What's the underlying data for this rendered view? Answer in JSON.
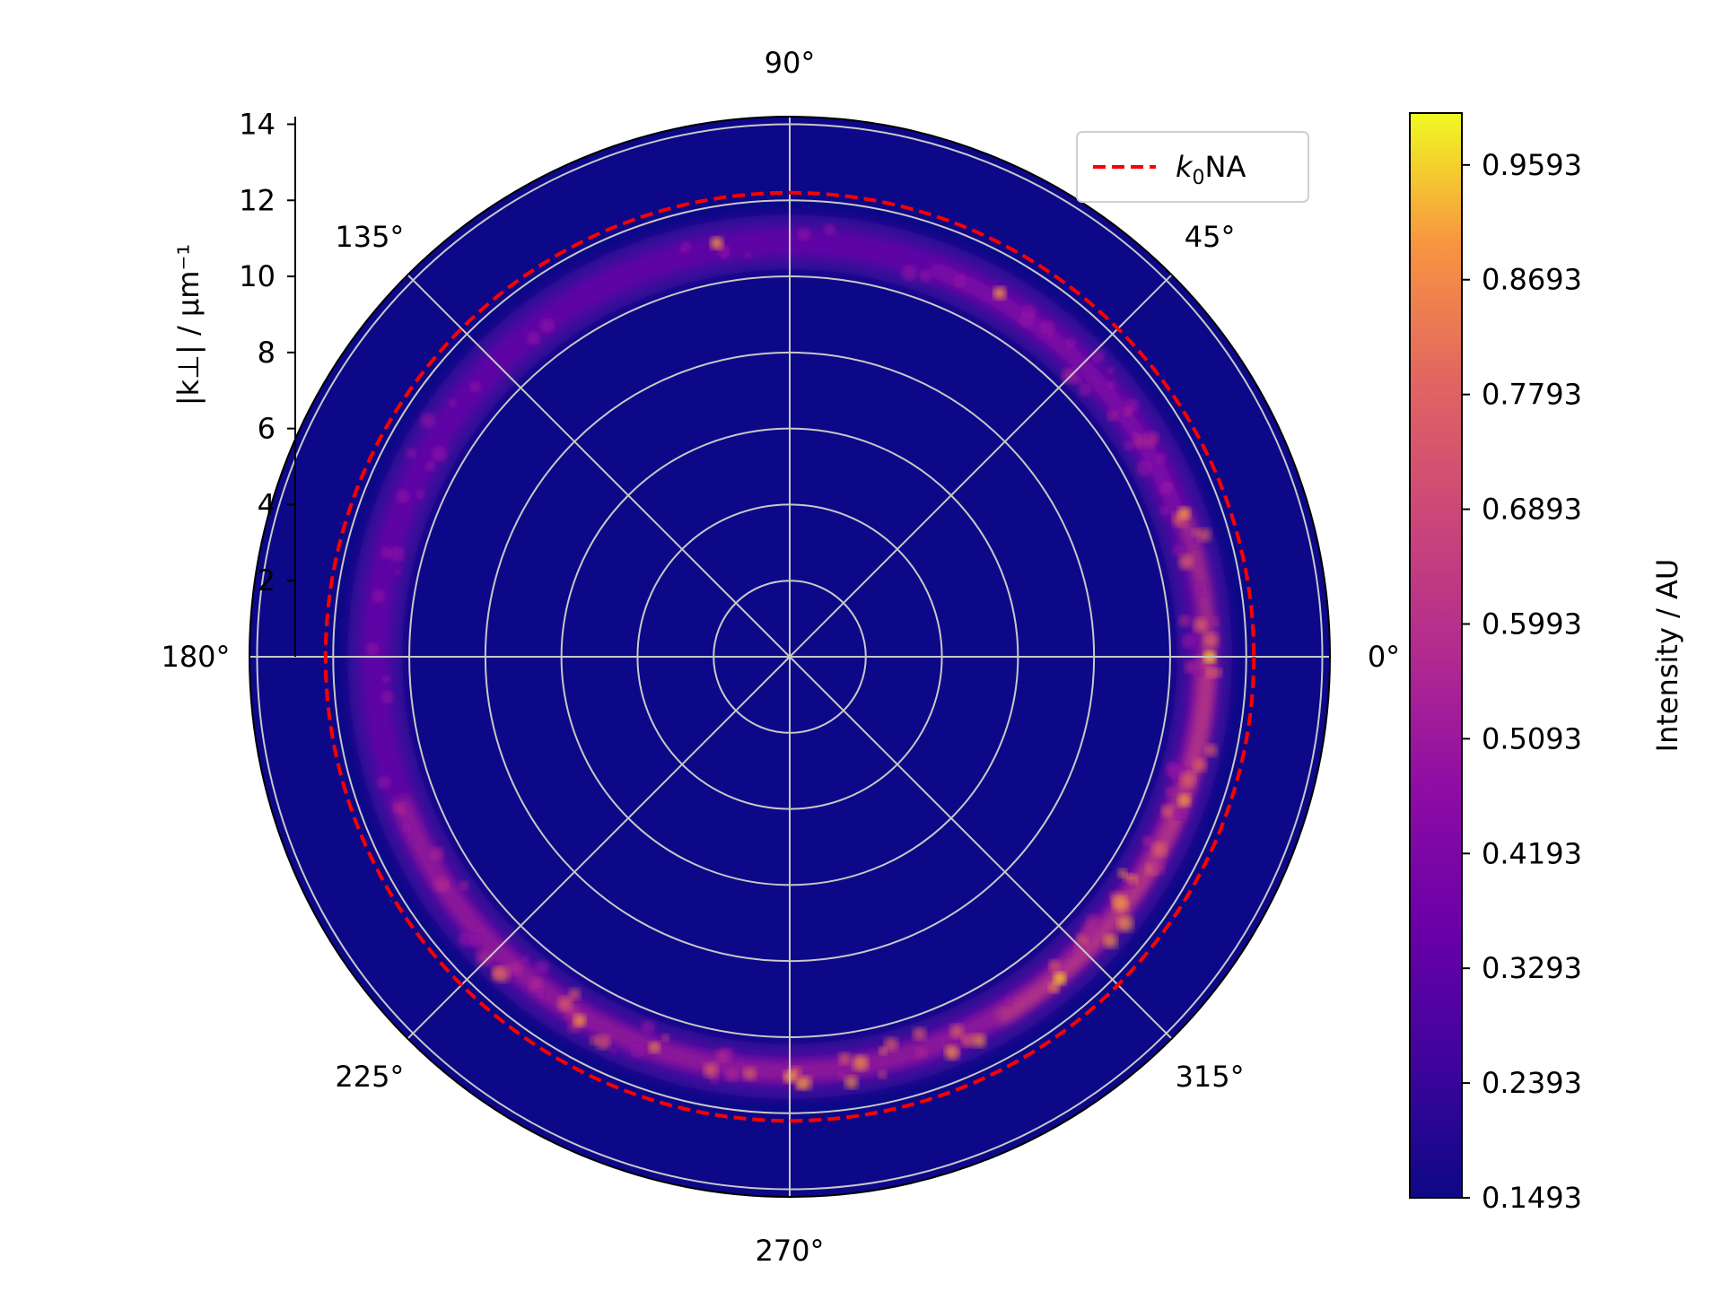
{
  "chart_data": {
    "type": "heatmap",
    "projection": "polar",
    "title": "",
    "radial_axis": {
      "label": "|k⊥| / μm⁻¹",
      "ticks": [
        2,
        4,
        6,
        8,
        10,
        12,
        14
      ],
      "tick_labels": [
        "2",
        "4",
        "6",
        "8",
        "10",
        "12",
        "14"
      ],
      "range": [
        0,
        14.2
      ]
    },
    "angular_axis": {
      "ticks_deg": [
        0,
        45,
        90,
        135,
        180,
        225,
        270,
        315
      ],
      "tick_labels": [
        "0°",
        "45°",
        "90°",
        "135°",
        "180°",
        "225°",
        "270°",
        "315°"
      ]
    },
    "grid": true,
    "series": [
      {
        "name": "k0NA",
        "name_base": "k",
        "name_sub": "0",
        "name_suffix": "NA",
        "type": "circle",
        "radius": 12.2,
        "color": "#ff0000",
        "style": "dashed"
      }
    ],
    "intensity_ring": {
      "center_radius": 10.9,
      "width": 0.6,
      "peak_angles_deg": [
        0,
        310,
        340,
        20,
        60,
        270,
        240,
        100
      ]
    },
    "legend": {
      "placement": "upper right",
      "entries": [
        "k0NA"
      ]
    },
    "colorbar": {
      "label": "Intensity / AU",
      "colormap": "plasma",
      "range": [
        0.1493,
        1.0
      ],
      "ticks": [
        0.1493,
        0.2393,
        0.3293,
        0.4193,
        0.5093,
        0.5993,
        0.6893,
        0.7793,
        0.8693,
        0.9593
      ],
      "tick_labels": [
        "0.1493",
        "0.2393",
        "0.3293",
        "0.4193",
        "0.5093",
        "0.5993",
        "0.6893",
        "0.7793",
        "0.8693",
        "0.9593"
      ]
    },
    "colors": {
      "background": "#0d0887",
      "field": "#1b0b8e",
      "grid": "#c8c8c8",
      "reference_circle": "#ff0000"
    }
  }
}
